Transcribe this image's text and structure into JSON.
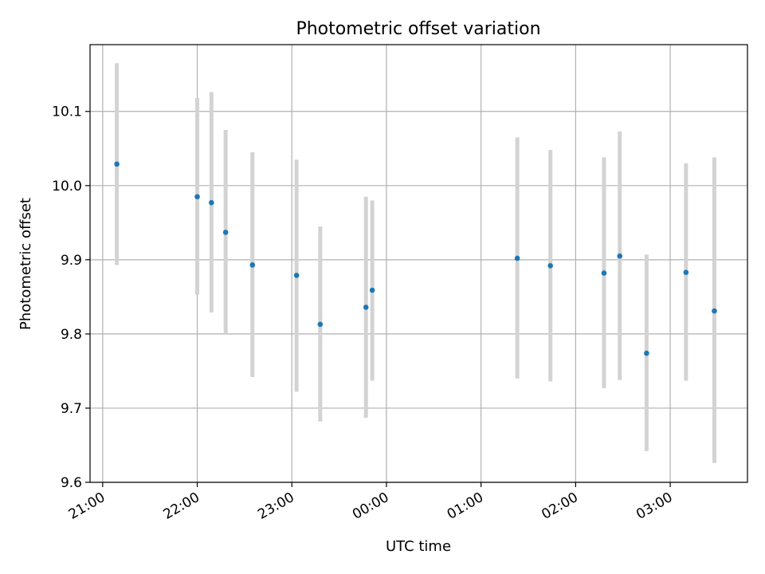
{
  "chart_data": {
    "type": "scatter",
    "title": "Photometric offset variation",
    "xlabel": "UTC time",
    "ylabel": "Photometric offset",
    "grid": true,
    "legend": "none",
    "x_is_time": true,
    "xlim": [
      "20:52",
      "03:49"
    ],
    "ylim": [
      9.6,
      10.19
    ],
    "yticks": [
      "9.6",
      "9.7",
      "9.8",
      "9.9",
      "10.0",
      "10.1"
    ],
    "xticks": [
      "21:00",
      "22:00",
      "23:00",
      "00:00",
      "01:00",
      "02:00",
      "03:00"
    ],
    "errorbar_color": "#d3d3d3",
    "marker_color": "#1f77b4",
    "points": [
      {
        "x": "21:09",
        "y": 10.029,
        "ylow": 9.893,
        "yhigh": 10.165
      },
      {
        "x": "22:00",
        "y": 9.985,
        "ylow": 9.853,
        "yhigh": 10.118
      },
      {
        "x": "22:09",
        "y": 9.977,
        "ylow": 9.829,
        "yhigh": 10.126
      },
      {
        "x": "22:18",
        "y": 9.937,
        "ylow": 9.8,
        "yhigh": 10.075
      },
      {
        "x": "22:35",
        "y": 9.893,
        "ylow": 9.742,
        "yhigh": 10.045
      },
      {
        "x": "23:03",
        "y": 9.879,
        "ylow": 9.722,
        "yhigh": 10.035
      },
      {
        "x": "23:18",
        "y": 9.813,
        "ylow": 9.682,
        "yhigh": 9.945
      },
      {
        "x": "23:47",
        "y": 9.836,
        "ylow": 9.687,
        "yhigh": 9.985
      },
      {
        "x": "23:51",
        "y": 9.859,
        "ylow": 9.737,
        "yhigh": 9.98
      },
      {
        "x": "01:23",
        "y": 9.902,
        "ylow": 9.74,
        "yhigh": 10.065
      },
      {
        "x": "01:44",
        "y": 9.892,
        "ylow": 9.736,
        "yhigh": 10.048
      },
      {
        "x": "02:18",
        "y": 9.882,
        "ylow": 9.727,
        "yhigh": 10.038
      },
      {
        "x": "02:28",
        "y": 9.905,
        "ylow": 9.738,
        "yhigh": 10.073
      },
      {
        "x": "02:45",
        "y": 9.774,
        "ylow": 9.642,
        "yhigh": 9.907
      },
      {
        "x": "03:10",
        "y": 9.883,
        "ylow": 9.737,
        "yhigh": 10.03
      },
      {
        "x": "03:28",
        "y": 9.831,
        "ylow": 9.626,
        "yhigh": 10.038
      }
    ]
  }
}
